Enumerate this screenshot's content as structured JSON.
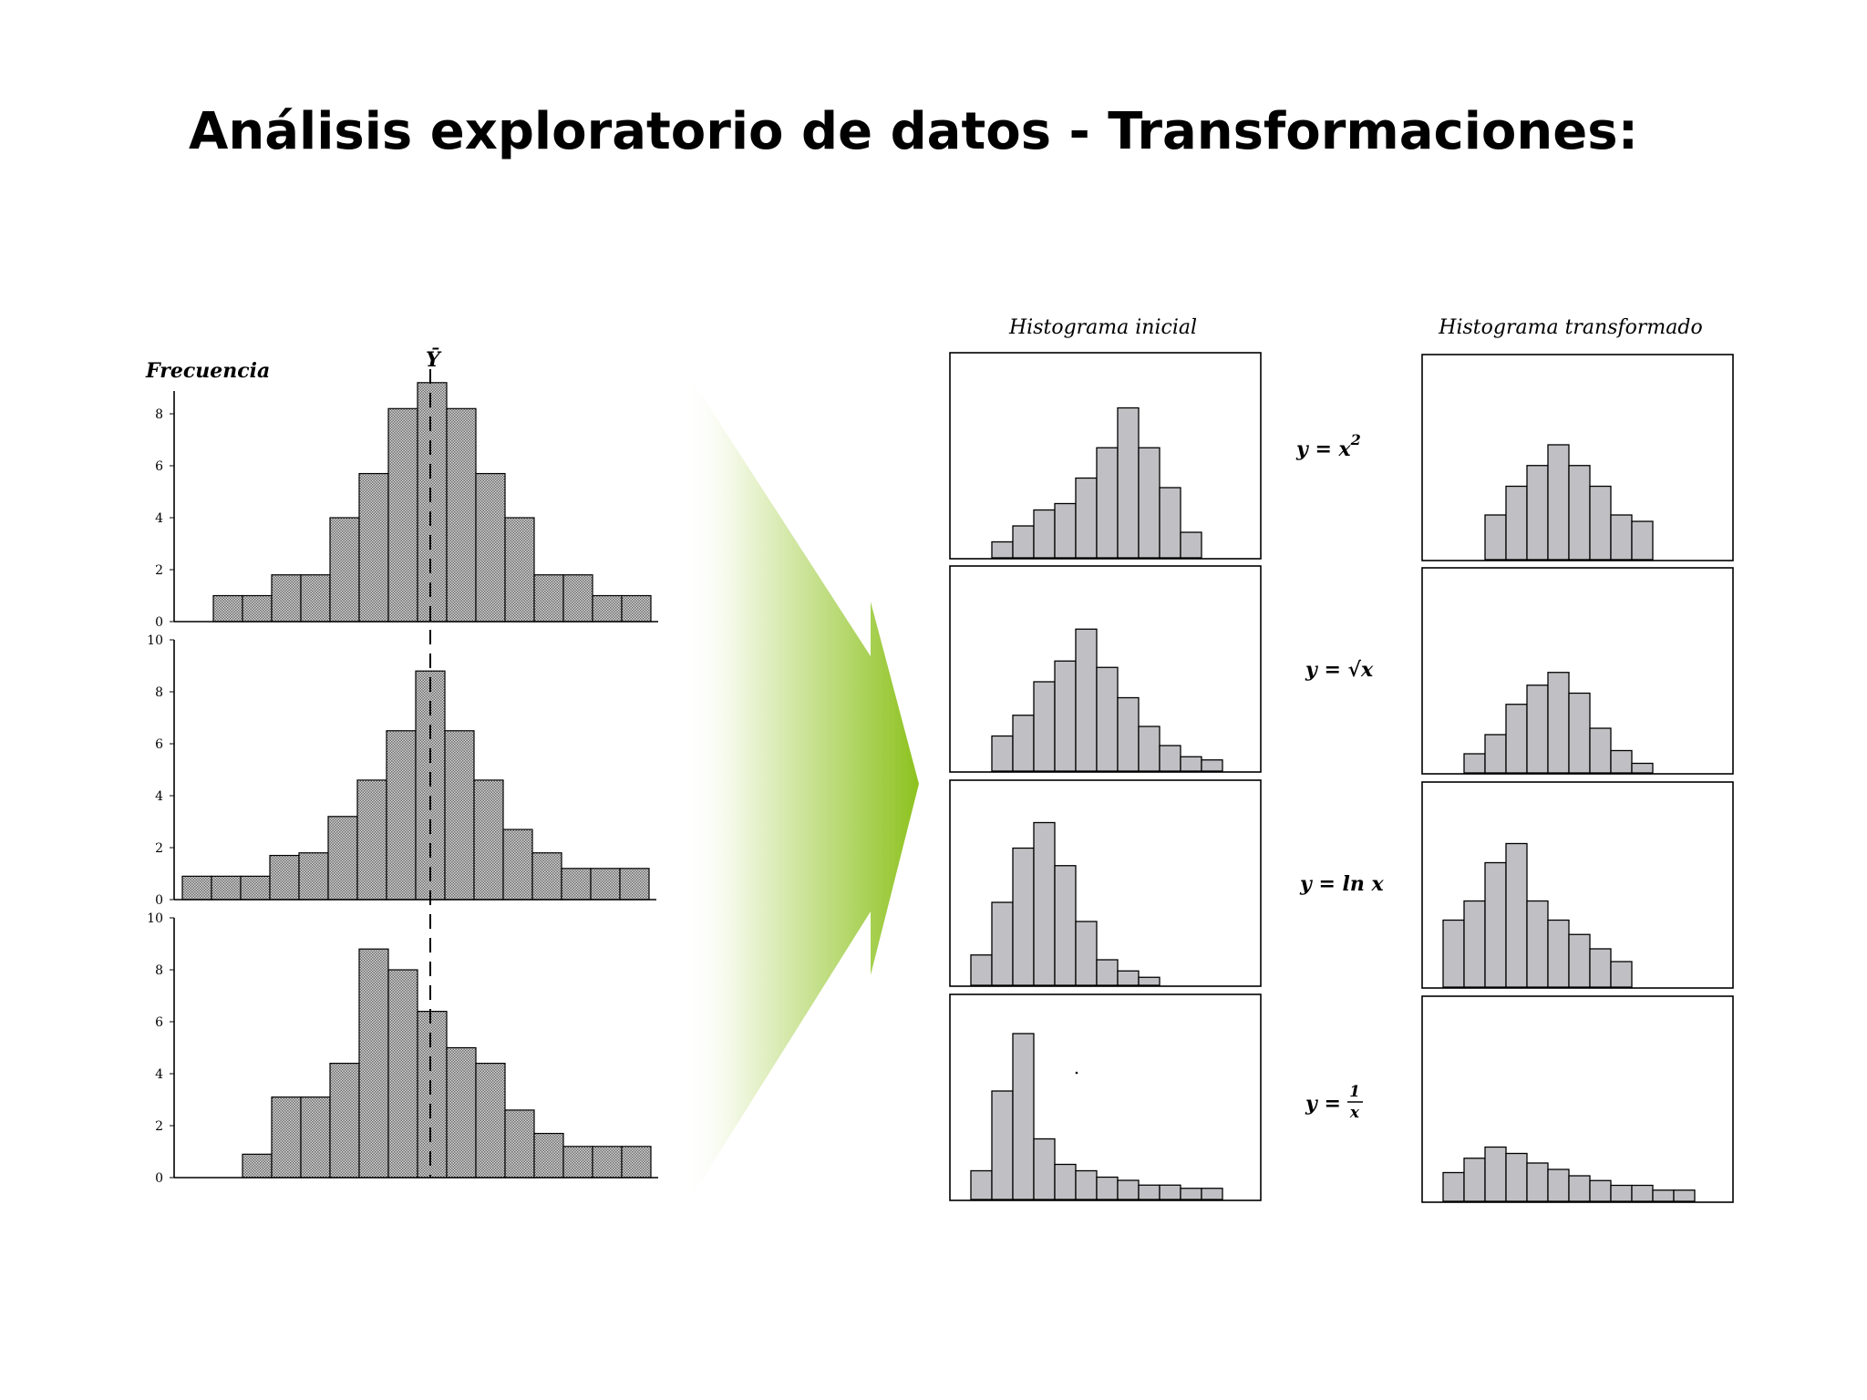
{
  "title": "Análisis exploratorio de datos - Transformaciones:",
  "colors": {
    "left_bar_fill": "#8c8c8c",
    "right_bar_fill": "#c0c0c4",
    "arrow_green": "#8dc21f",
    "outline": "#000000"
  },
  "left_panel": {
    "ylabel": "Frecuencia",
    "mean_label": "Ȳ",
    "mean_line_style": "dashed"
  },
  "right_panel": {
    "col_initial_label": "Histograma inicial",
    "col_transformed_label": "Histograma transformado"
  },
  "chart_data": [
    {
      "type": "bar",
      "group": "left",
      "ylabel": "Frecuencia",
      "ylim": [
        0,
        10
      ],
      "yticks": [
        "0",
        "2",
        "4",
        "6",
        "8"
      ],
      "values": [
        1,
        1,
        1.8,
        1.8,
        4,
        5.7,
        8.2,
        9.2,
        8.2,
        5.7,
        4,
        1.8,
        1.8,
        1,
        1
      ]
    },
    {
      "type": "bar",
      "group": "left",
      "ylim": [
        0,
        10
      ],
      "yticks": [
        "0",
        "2",
        "4",
        "6",
        "8",
        "10"
      ],
      "values": [
        0.9,
        0.9,
        0.9,
        1.7,
        1.8,
        3.2,
        4.6,
        6.5,
        8.8,
        6.5,
        4.6,
        2.7,
        1.8,
        1.2,
        1.2,
        1.2
      ]
    },
    {
      "type": "bar",
      "group": "left",
      "ylim": [
        0,
        10
      ],
      "yticks": [
        "0",
        "2",
        "4",
        "6",
        "8",
        "10"
      ],
      "values": [
        0.9,
        3.1,
        3.1,
        4.4,
        8.8,
        8.0,
        6.4,
        5.0,
        4.4,
        2.6,
        1.7,
        1.2,
        1.2,
        1.2
      ]
    },
    {
      "type": "bar",
      "group": "initial",
      "transform": "y = x²",
      "values": [
        1,
        2,
        3,
        3.4,
        5,
        6.9,
        9.4,
        6.9,
        4.4,
        1.6
      ]
    },
    {
      "type": "bar",
      "group": "transformed",
      "transform": "y = x²",
      "values": [
        2.8,
        4.6,
        5.9,
        7.2,
        5.9,
        4.6,
        2.8,
        2.4
      ]
    },
    {
      "type": "bar",
      "group": "initial",
      "transform": "y = √x",
      "values": [
        2.2,
        3.5,
        5.6,
        6.9,
        8.9,
        6.5,
        4.6,
        2.8,
        1.6,
        0.9,
        0.7
      ]
    },
    {
      "type": "bar",
      "group": "transformed",
      "transform": "y = √x",
      "values": [
        1.2,
        2.4,
        4.3,
        5.5,
        6.3,
        5.0,
        2.8,
        1.4,
        0.6
      ]
    },
    {
      "type": "bar",
      "group": "initial",
      "transform": "y = ln x",
      "values": [
        1.9,
        5.2,
        8.6,
        10.2,
        7.5,
        4.0,
        1.6,
        0.9,
        0.5
      ]
    },
    {
      "type": "bar",
      "group": "transformed",
      "transform": "y = ln x",
      "values": [
        4.2,
        5.4,
        7.8,
        9.0,
        5.4,
        4.2,
        3.3,
        2.4,
        1.6
      ]
    },
    {
      "type": "bar",
      "group": "initial",
      "transform": "y = 1/x",
      "values": [
        1.8,
        6.8,
        10.4,
        3.8,
        2.2,
        1.8,
        1.4,
        1.2,
        0.9,
        0.9,
        0.7,
        0.7
      ]
    },
    {
      "type": "bar",
      "group": "transformed",
      "transform": "y = 1/x",
      "values": [
        1.8,
        2.7,
        3.4,
        3.0,
        2.4,
        2.0,
        1.6,
        1.3,
        1.0,
        1.0,
        0.7,
        0.7
      ]
    }
  ],
  "transforms": [
    {
      "lhs": "y = x",
      "sup": "2"
    },
    {
      "lhs": "y = ",
      "radical": "√x"
    },
    {
      "lhs": "y = ln x"
    },
    {
      "lhs": "y = ",
      "num": "1",
      "den": "x"
    }
  ]
}
